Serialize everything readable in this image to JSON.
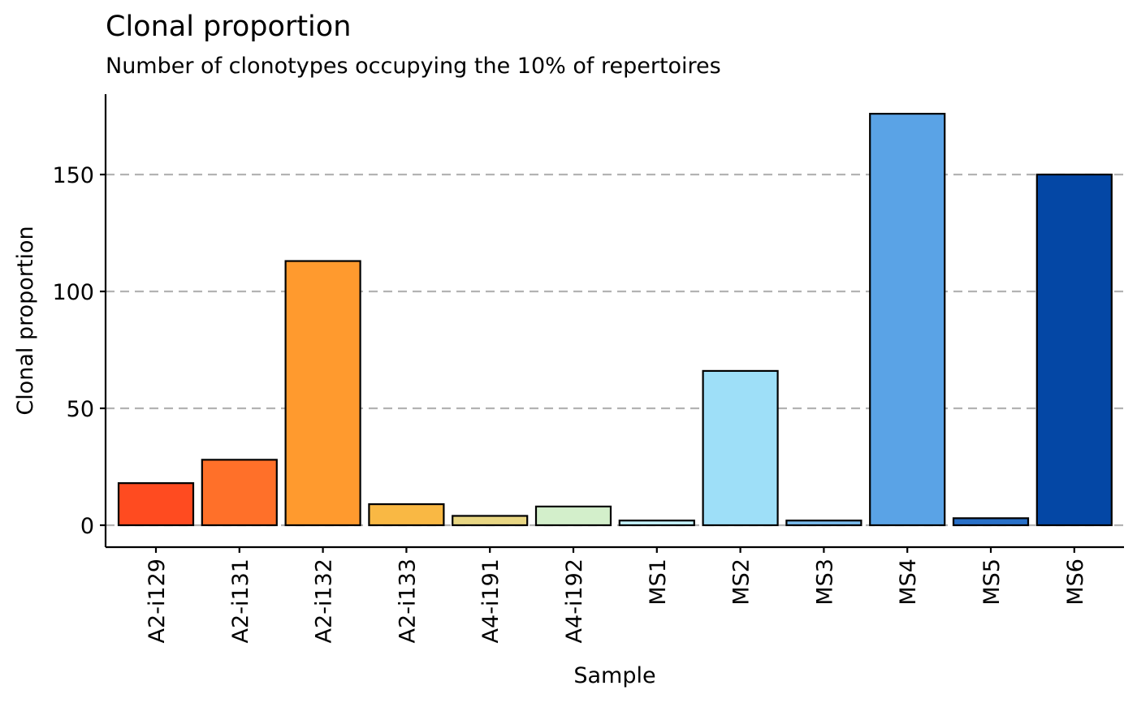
{
  "chart_data": {
    "type": "bar",
    "title": "Clonal proportion",
    "subtitle": "Number of clonotypes occupying the 10% of repertoires",
    "xlabel": "Sample",
    "ylabel": "Clonal proportion",
    "categories": [
      "A2-i129",
      "A2-i131",
      "A2-i132",
      "A2-i133",
      "A4-i191",
      "A4-i192",
      "MS1",
      "MS2",
      "MS3",
      "MS4",
      "MS5",
      "MS6"
    ],
    "values": [
      18,
      28,
      113,
      9,
      4,
      8,
      2,
      66,
      2,
      176,
      3,
      150
    ],
    "colors": [
      "#FF4B20",
      "#FF7029",
      "#FF9A2E",
      "#F9B844",
      "#E8D683",
      "#D3EFCB",
      "#C6F4FF",
      "#9EDFF8",
      "#7ABDEF",
      "#5AA3E6",
      "#2870C8",
      "#0447A5"
    ],
    "yticks": [
      0,
      50,
      100,
      150
    ],
    "ylim": [
      -9,
      185
    ],
    "grid": "horizontal-dashed",
    "legend": "none"
  }
}
